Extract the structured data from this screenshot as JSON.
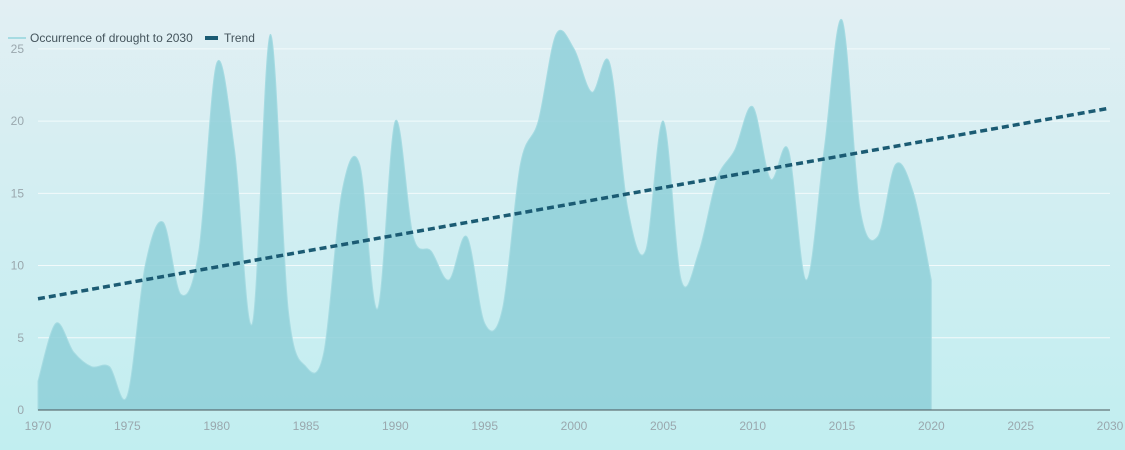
{
  "colors": {
    "area_fill": "#8ecfd8",
    "area_stroke": "#a6dbe2",
    "trend": "#1b5b73",
    "grid": "#f2fafb",
    "axis": "#4a555a",
    "tick_text": "#9aa7ad"
  },
  "chart_data": {
    "type": "area",
    "title": "",
    "xlabel": "",
    "ylabel": "",
    "xlim": [
      1970,
      2030
    ],
    "ylim": [
      0,
      27
    ],
    "x_ticks": [
      1970,
      1975,
      1980,
      1985,
      1990,
      1995,
      2000,
      2005,
      2010,
      2015,
      2020,
      2025,
      2030
    ],
    "y_ticks": [
      0,
      5,
      10,
      15,
      20,
      25
    ],
    "grid": "horizontal",
    "legend_position": "top-left",
    "series": [
      {
        "name": "Occurrence of drought to 2030",
        "style": "area",
        "x": [
          1970,
          1971,
          1972,
          1973,
          1974,
          1975,
          1976,
          1977,
          1978,
          1979,
          1980,
          1981,
          1982,
          1983,
          1984,
          1985,
          1986,
          1987,
          1988,
          1989,
          1990,
          1991,
          1992,
          1993,
          1994,
          1995,
          1996,
          1997,
          1998,
          1999,
          2000,
          2001,
          2002,
          2003,
          2004,
          2005,
          2006,
          2007,
          2008,
          2009,
          2010,
          2011,
          2012,
          2013,
          2014,
          2015,
          2016,
          2017,
          2018,
          2019,
          2020
        ],
        "values": [
          2,
          6,
          4,
          3,
          3,
          1,
          10,
          13,
          8,
          11,
          24,
          18,
          6,
          26,
          7,
          3,
          4,
          15,
          17,
          7,
          20,
          12,
          11,
          9,
          12,
          6,
          7,
          17,
          20,
          26,
          25,
          22,
          24,
          14,
          11,
          20,
          9,
          11,
          16,
          18,
          21,
          16,
          18,
          9,
          18,
          27,
          14,
          12,
          17,
          15,
          9
        ]
      },
      {
        "name": "Trend",
        "style": "dashed-line",
        "x": [
          1970,
          2030
        ],
        "values": [
          7.7,
          20.9
        ]
      }
    ]
  }
}
